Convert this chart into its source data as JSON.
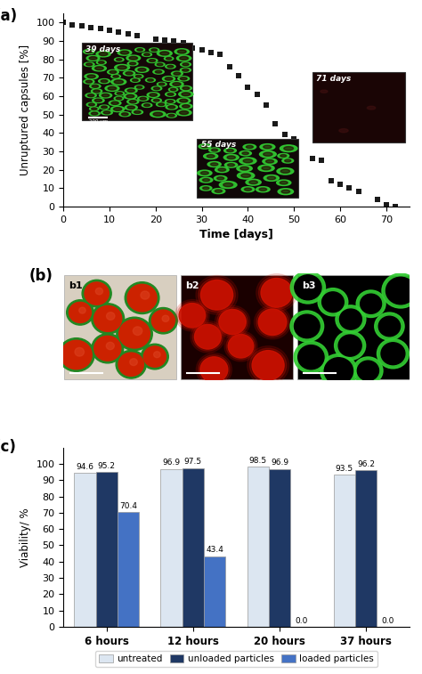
{
  "panel_a": {
    "label": "(a)",
    "x_data": [
      0,
      2,
      4,
      6,
      8,
      10,
      12,
      14,
      16,
      20,
      22,
      24,
      26,
      28,
      30,
      32,
      34,
      36,
      38,
      40,
      42,
      44,
      46,
      48,
      50,
      54,
      56,
      58,
      60,
      62,
      64,
      68,
      70,
      72
    ],
    "y_data": [
      100,
      99,
      98.5,
      97.5,
      97,
      96,
      95,
      94,
      93,
      91,
      90.5,
      90,
      89,
      86,
      85,
      84,
      83,
      76,
      71,
      65,
      61,
      55,
      45,
      39,
      37,
      26,
      25,
      14,
      12,
      10,
      8,
      4,
      1,
      0
    ],
    "xlabel": "Time [days]",
    "ylabel": "Unruptured capsules [%]",
    "xlim": [
      0,
      75
    ],
    "ylim": [
      0,
      105
    ],
    "yticks": [
      0,
      10,
      20,
      30,
      40,
      50,
      60,
      70,
      80,
      90,
      100
    ],
    "xticks": [
      0,
      10,
      20,
      30,
      40,
      50,
      60,
      70
    ],
    "marker_color": "#1a1a1a",
    "marker": "s",
    "marker_size": 4.5
  },
  "panel_c": {
    "label": "(c)",
    "categories": [
      "6 hours",
      "12 hours",
      "20 hours",
      "37 hours"
    ],
    "untreated": [
      94.6,
      96.9,
      98.5,
      93.5
    ],
    "unloaded": [
      95.2,
      97.5,
      96.9,
      96.2
    ],
    "loaded": [
      70.4,
      43.4,
      0.0,
      0.0
    ],
    "bar_width": 0.25,
    "colors": {
      "untreated": "#dce6f1",
      "unloaded": "#1f3864",
      "loaded": "#4472c4"
    },
    "ylabel": "Viability/ %",
    "ylim": [
      0,
      110
    ],
    "yticks": [
      0,
      10,
      20,
      30,
      40,
      50,
      60,
      70,
      80,
      90,
      100
    ],
    "legend_labels": [
      "untreated",
      "unloaded particles",
      "loaded particles"
    ]
  }
}
